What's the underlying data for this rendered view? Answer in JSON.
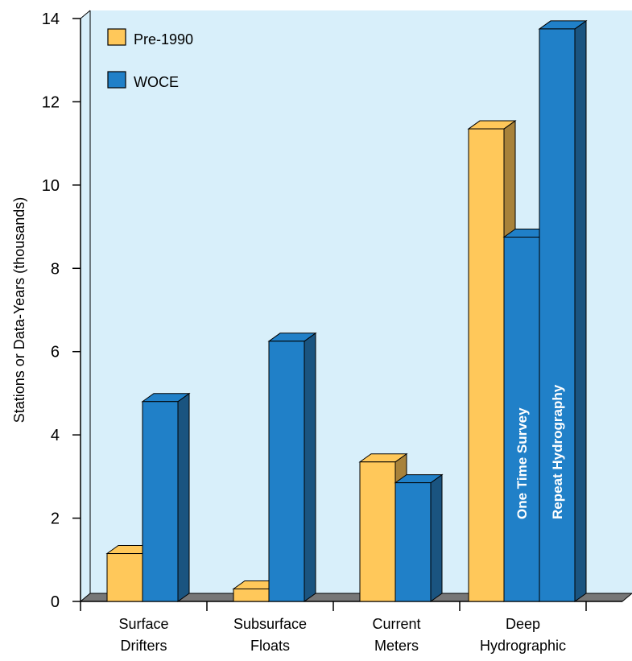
{
  "chart_data": {
    "type": "bar",
    "ylabel": "Stations or Data-Years (thousands)",
    "ylim": [
      0,
      14
    ],
    "yticks": [
      0,
      2,
      4,
      6,
      8,
      10,
      12,
      14
    ],
    "grid": false,
    "legend_position": "top-left",
    "categories": [
      {
        "line1": "Surface",
        "line2": "Drifters"
      },
      {
        "line1": "Subsurface",
        "line2": "Floats"
      },
      {
        "line1": "Current",
        "line2": "Meters"
      },
      {
        "line1": "Deep",
        "line2": "Hydrographic"
      }
    ],
    "series": [
      {
        "name": "Pre-1990",
        "color": "#FFC85A"
      },
      {
        "name": "WOCE",
        "color": "#2080C8"
      }
    ],
    "bars": [
      {
        "category": 0,
        "series": 0,
        "value": 1.15
      },
      {
        "category": 0,
        "series": 1,
        "value": 4.8
      },
      {
        "category": 1,
        "series": 0,
        "value": 0.3
      },
      {
        "category": 1,
        "series": 1,
        "value": 6.25
      },
      {
        "category": 2,
        "series": 0,
        "value": 3.35
      },
      {
        "category": 2,
        "series": 1,
        "value": 2.85
      },
      {
        "category": 3,
        "series": 0,
        "value": 11.35
      },
      {
        "category": 3,
        "series": 1,
        "value": 8.75,
        "label": "One Time Survey"
      },
      {
        "category": 3,
        "series": 1,
        "value": 13.75,
        "label": "Repeat Hydrography"
      }
    ],
    "colors": {
      "background": "#D8EFFA",
      "floor": "#777777",
      "pre1990_front": "#FFC85A",
      "pre1990_side": "#A8823A",
      "woce_front": "#2080C8",
      "woce_side": "#1A5480"
    }
  }
}
